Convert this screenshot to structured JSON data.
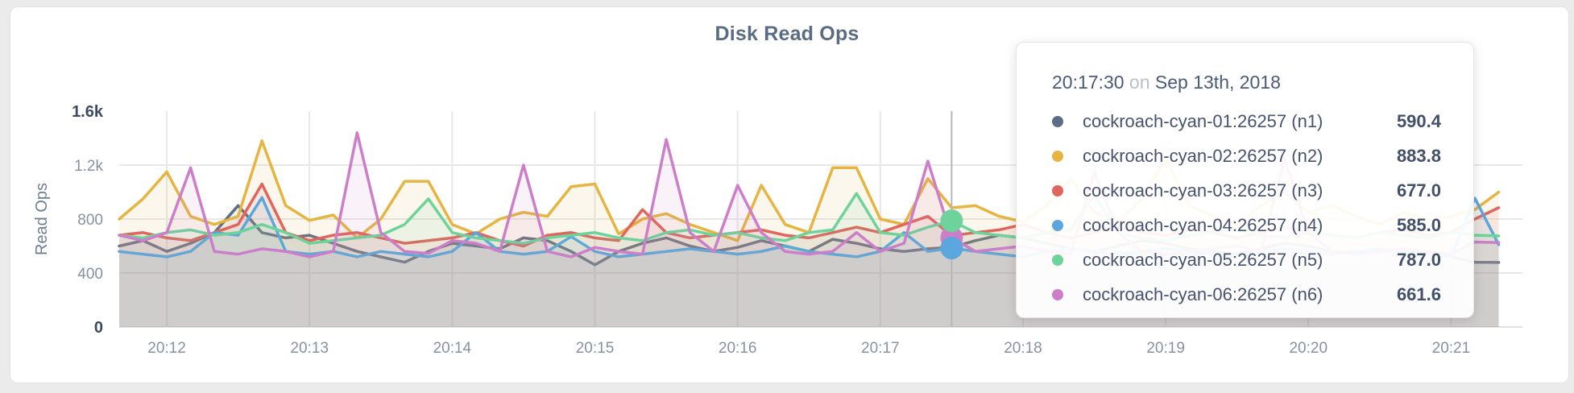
{
  "tooltip": {
    "time": "20:17:30",
    "conjunction": "on",
    "date": "Sep 13th, 2018",
    "rows": [
      {
        "series": "n1",
        "name": "cockroach-cyan-01:26257 (n1)",
        "value": "590.4",
        "color": "#5f6c87"
      },
      {
        "series": "n2",
        "name": "cockroach-cyan-02:26257 (n2)",
        "value": "883.8",
        "color": "#e6b441"
      },
      {
        "series": "n3",
        "name": "cockroach-cyan-03:26257 (n3)",
        "value": "677.0",
        "color": "#e0655d"
      },
      {
        "series": "n4",
        "name": "cockroach-cyan-04:26257 (n4)",
        "value": "585.0",
        "color": "#5ba6dc"
      },
      {
        "series": "n5",
        "name": "cockroach-cyan-05:26257 (n5)",
        "value": "787.0",
        "color": "#6ed39b"
      },
      {
        "series": "n6",
        "name": "cockroach-cyan-06:26257 (n6)",
        "value": "661.6",
        "color": "#cc7fc8"
      }
    ]
  },
  "chart_data": {
    "type": "area",
    "title": "Disk Read Ops",
    "ylabel": "Read Ops",
    "ylim": [
      0,
      1600
    ],
    "grid": true,
    "legend_position": "tooltip",
    "x_start_time": "20:11:40",
    "x_step_seconds": 10,
    "yticks": [
      {
        "value": 0,
        "label": "0",
        "bold": true
      },
      {
        "value": 400,
        "label": "400",
        "bold": false
      },
      {
        "value": 800,
        "label": "800",
        "bold": false
      },
      {
        "value": 1200,
        "label": "1.2k",
        "bold": false
      },
      {
        "value": 1600,
        "label": "1.6k",
        "bold": true
      }
    ],
    "xticks": [
      {
        "seconds": 20,
        "label": "20:12"
      },
      {
        "seconds": 80,
        "label": "20:13"
      },
      {
        "seconds": 140,
        "label": "20:14"
      },
      {
        "seconds": 200,
        "label": "20:15"
      },
      {
        "seconds": 260,
        "label": "20:16"
      },
      {
        "seconds": 320,
        "label": "20:17"
      },
      {
        "seconds": 380,
        "label": "20:18"
      },
      {
        "seconds": 440,
        "label": "20:19"
      },
      {
        "seconds": 500,
        "label": "20:20"
      },
      {
        "seconds": 560,
        "label": "20:21"
      }
    ],
    "series": [
      {
        "id": "n1",
        "name": "cockroach-cyan-01:26257 (n1)",
        "color": "#5f6c87",
        "values": [
          600,
          640,
          560,
          620,
          700,
          900,
          700,
          660,
          680,
          620,
          560,
          520,
          480,
          560,
          620,
          600,
          580,
          660,
          640,
          560,
          460,
          560,
          620,
          660,
          600,
          560,
          590,
          640,
          600,
          560,
          650,
          620,
          580,
          560,
          580,
          590.4,
          640,
          680,
          660,
          620,
          580,
          560,
          600,
          640,
          620,
          580,
          560,
          540,
          580,
          620,
          600,
          560,
          540,
          560,
          580,
          560,
          520,
          480,
          478
        ]
      },
      {
        "id": "n2",
        "name": "cockroach-cyan-02:26257 (n2)",
        "color": "#e6b441",
        "values": [
          800,
          950,
          1150,
          820,
          760,
          820,
          1380,
          900,
          790,
          830,
          660,
          800,
          1080,
          1080,
          760,
          690,
          800,
          850,
          820,
          1040,
          1060,
          690,
          800,
          840,
          760,
          700,
          640,
          1050,
          760,
          700,
          1180,
          1180,
          800,
          760,
          1100,
          883.8,
          900,
          820,
          780,
          900,
          1100,
          850,
          780,
          950,
          1250,
          900,
          820,
          760,
          900,
          1000,
          850,
          900,
          820,
          760,
          850,
          800,
          820,
          870,
          1000
        ]
      },
      {
        "id": "n3",
        "name": "cockroach-cyan-03:26257 (n3)",
        "color": "#e0655d",
        "values": [
          680,
          700,
          660,
          640,
          700,
          760,
          1060,
          700,
          640,
          680,
          700,
          660,
          620,
          640,
          660,
          700,
          640,
          600,
          680,
          700,
          660,
          640,
          870,
          700,
          660,
          680,
          700,
          720,
          680,
          660,
          700,
          740,
          700,
          760,
          820,
          677,
          700,
          720,
          760,
          700,
          660,
          700,
          740,
          700,
          680,
          720,
          700,
          660,
          700,
          740,
          700,
          680,
          660,
          700,
          720,
          680,
          700,
          800,
          884
        ]
      },
      {
        "id": "n4",
        "name": "cockroach-cyan-04:26257 (n4)",
        "color": "#5ba6dc",
        "values": [
          560,
          540,
          520,
          560,
          700,
          680,
          960,
          560,
          540,
          560,
          520,
          560,
          540,
          520,
          560,
          700,
          560,
          540,
          560,
          670,
          560,
          520,
          540,
          560,
          580,
          560,
          540,
          560,
          600,
          560,
          540,
          520,
          560,
          700,
          560,
          585,
          560,
          540,
          520,
          560,
          580,
          560,
          540,
          560,
          580,
          560,
          540,
          520,
          560,
          580,
          560,
          540,
          560,
          580,
          560,
          540,
          520,
          955,
          610
        ]
      },
      {
        "id": "n5",
        "name": "cockroach-cyan-05:26257 (n5)",
        "color": "#6ed39b",
        "values": [
          680,
          660,
          700,
          720,
          680,
          700,
          760,
          700,
          620,
          640,
          660,
          680,
          760,
          950,
          700,
          660,
          640,
          620,
          660,
          680,
          700,
          660,
          640,
          700,
          720,
          680,
          700,
          660,
          640,
          700,
          720,
          990,
          700,
          680,
          740,
          787,
          700,
          680,
          660,
          700,
          720,
          980,
          700,
          660,
          640,
          680,
          700,
          720,
          680,
          660,
          700,
          680,
          660,
          700,
          680,
          660,
          700,
          680,
          675
        ]
      },
      {
        "id": "n6",
        "name": "cockroach-cyan-06:26257 (n6)",
        "color": "#cc7fc8",
        "values": [
          680,
          640,
          700,
          1180,
          560,
          540,
          580,
          560,
          520,
          560,
          1440,
          700,
          560,
          545,
          640,
          620,
          560,
          1200,
          560,
          520,
          590,
          560,
          540,
          1390,
          700,
          560,
          1050,
          700,
          560,
          540,
          560,
          700,
          560,
          620,
          1230,
          661.6,
          560,
          580,
          600,
          560,
          540,
          1150,
          700,
          560,
          540,
          560,
          580,
          600,
          560,
          1250,
          700,
          560,
          540,
          560,
          580,
          560,
          540,
          630,
          625
        ]
      }
    ],
    "hover": {
      "index": 35,
      "seconds": 350,
      "time": "20:17:30",
      "guideline": true,
      "dot_series": [
        "n6",
        "n5",
        "n4"
      ],
      "dot_radius": 14
    }
  }
}
